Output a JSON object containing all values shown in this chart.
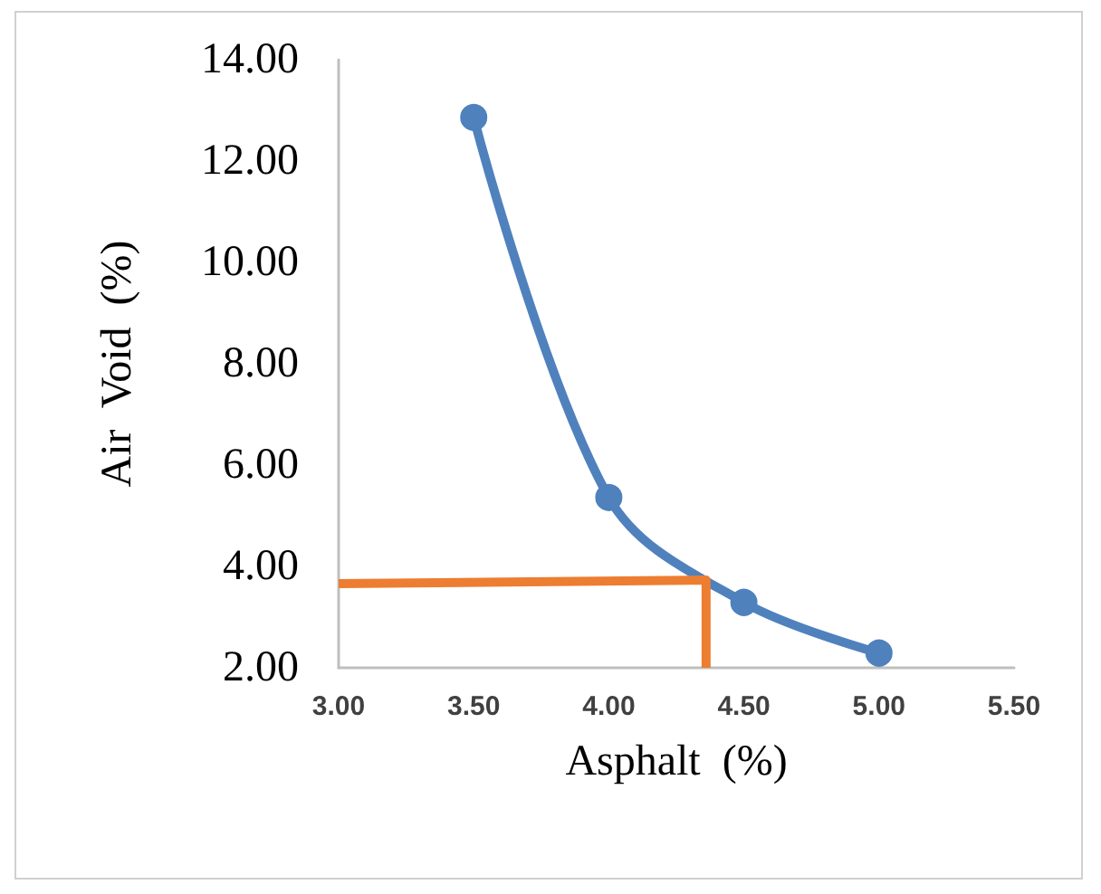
{
  "chart_data": {
    "type": "line",
    "xlabel": "Asphalt  (%)",
    "ylabel": "Air  Void  (%)",
    "xlim": [
      3.0,
      5.5
    ],
    "xticks": [
      {
        "value": 3.0,
        "label": "3.00"
      },
      {
        "value": 3.5,
        "label": "3.50"
      },
      {
        "value": 4.0,
        "label": "4.00"
      },
      {
        "value": 4.5,
        "label": "4.50"
      },
      {
        "value": 5.0,
        "label": "5.00"
      },
      {
        "value": 5.5,
        "label": "5.50"
      }
    ],
    "ylim": [
      2,
      14
    ],
    "yticks": [
      {
        "value": 2,
        "label": "2.00"
      },
      {
        "value": 4,
        "label": "4.00"
      },
      {
        "value": 6,
        "label": "6.00"
      },
      {
        "value": 8,
        "label": "8.00"
      },
      {
        "value": 10,
        "label": "10.00"
      },
      {
        "value": 12,
        "label": "12.00"
      },
      {
        "value": 14,
        "label": "14.00"
      }
    ],
    "grid": false,
    "line_style": "solid",
    "series": [
      {
        "color": "#4f81bd",
        "marker": "circle",
        "x": [
          3.5,
          4.0,
          4.5,
          5.0
        ],
        "values": [
          12.86,
          5.36,
          3.29,
          2.29
        ]
      },
      {
        "color": "#ed7d31",
        "marker": "none",
        "x": [
          3.0,
          4.36,
          4.36
        ],
        "values": [
          3.66,
          3.73,
          2.0
        ]
      }
    ]
  }
}
